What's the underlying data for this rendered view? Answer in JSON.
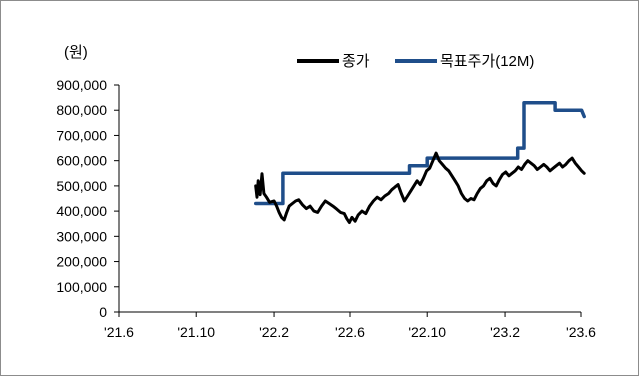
{
  "chart_data": {
    "type": "line",
    "ylabel": "(원)",
    "ylim": [
      0,
      900000
    ],
    "y_ticks": [
      "0",
      "100,000",
      "200,000",
      "300,000",
      "400,000",
      "500,000",
      "600,000",
      "700,000",
      "800,000",
      "900,000"
    ],
    "x_ticks": [
      "'21.6",
      "'21.10",
      "'22.2",
      "'22.6",
      "'22.10",
      "'23.2",
      "'23.6"
    ],
    "x_tick_dates": [
      "2021-06",
      "2021-10",
      "2022-02",
      "2022-06",
      "2022-10",
      "2023-02",
      "2023-06"
    ],
    "legend_position": "top-right",
    "series": [
      {
        "name": "종가",
        "color": "#000000",
        "points": [
          [
            "2022-01-03",
            500000
          ],
          [
            "2022-01-05",
            455000
          ],
          [
            "2022-01-07",
            520000
          ],
          [
            "2022-01-10",
            465000
          ],
          [
            "2022-01-13",
            548000
          ],
          [
            "2022-01-16",
            470000
          ],
          [
            "2022-01-20",
            455000
          ],
          [
            "2022-01-25",
            435000
          ],
          [
            "2022-02-01",
            440000
          ],
          [
            "2022-02-05",
            420000
          ],
          [
            "2022-02-09",
            395000
          ],
          [
            "2022-02-13",
            375000
          ],
          [
            "2022-02-17",
            365000
          ],
          [
            "2022-02-21",
            395000
          ],
          [
            "2022-02-25",
            420000
          ],
          [
            "2022-03-02",
            430000
          ],
          [
            "2022-03-07",
            440000
          ],
          [
            "2022-03-12",
            445000
          ],
          [
            "2022-03-18",
            425000
          ],
          [
            "2022-03-24",
            410000
          ],
          [
            "2022-03-30",
            420000
          ],
          [
            "2022-04-05",
            400000
          ],
          [
            "2022-04-11",
            395000
          ],
          [
            "2022-04-17",
            420000
          ],
          [
            "2022-04-23",
            440000
          ],
          [
            "2022-04-29",
            430000
          ],
          [
            "2022-05-05",
            420000
          ],
          [
            "2022-05-11",
            408000
          ],
          [
            "2022-05-17",
            395000
          ],
          [
            "2022-05-23",
            390000
          ],
          [
            "2022-05-27",
            370000
          ],
          [
            "2022-05-31",
            355000
          ],
          [
            "2022-06-04",
            375000
          ],
          [
            "2022-06-09",
            360000
          ],
          [
            "2022-06-14",
            385000
          ],
          [
            "2022-06-20",
            400000
          ],
          [
            "2022-06-26",
            390000
          ],
          [
            "2022-07-02",
            420000
          ],
          [
            "2022-07-08",
            440000
          ],
          [
            "2022-07-14",
            455000
          ],
          [
            "2022-07-20",
            445000
          ],
          [
            "2022-07-26",
            460000
          ],
          [
            "2022-08-01",
            470000
          ],
          [
            "2022-08-06",
            485000
          ],
          [
            "2022-08-11",
            495000
          ],
          [
            "2022-08-16",
            505000
          ],
          [
            "2022-08-21",
            470000
          ],
          [
            "2022-08-26",
            440000
          ],
          [
            "2022-08-31",
            460000
          ],
          [
            "2022-09-05",
            480000
          ],
          [
            "2022-09-10",
            500000
          ],
          [
            "2022-09-15",
            520000
          ],
          [
            "2022-09-20",
            505000
          ],
          [
            "2022-09-25",
            530000
          ],
          [
            "2022-09-30",
            560000
          ],
          [
            "2022-10-05",
            570000
          ],
          [
            "2022-10-10",
            600000
          ],
          [
            "2022-10-15",
            630000
          ],
          [
            "2022-10-20",
            600000
          ],
          [
            "2022-10-25",
            585000
          ],
          [
            "2022-10-30",
            570000
          ],
          [
            "2022-11-04",
            560000
          ],
          [
            "2022-11-09",
            540000
          ],
          [
            "2022-11-14",
            520000
          ],
          [
            "2022-11-19",
            500000
          ],
          [
            "2022-11-24",
            470000
          ],
          [
            "2022-11-29",
            450000
          ],
          [
            "2022-12-04",
            440000
          ],
          [
            "2022-12-09",
            450000
          ],
          [
            "2022-12-14",
            445000
          ],
          [
            "2022-12-19",
            470000
          ],
          [
            "2022-12-24",
            490000
          ],
          [
            "2022-12-29",
            500000
          ],
          [
            "2023-01-03",
            520000
          ],
          [
            "2023-01-08",
            530000
          ],
          [
            "2023-01-13",
            510000
          ],
          [
            "2023-01-18",
            500000
          ],
          [
            "2023-01-23",
            525000
          ],
          [
            "2023-01-28",
            545000
          ],
          [
            "2023-02-02",
            555000
          ],
          [
            "2023-02-07",
            540000
          ],
          [
            "2023-02-12",
            550000
          ],
          [
            "2023-02-17",
            560000
          ],
          [
            "2023-02-22",
            575000
          ],
          [
            "2023-02-27",
            565000
          ],
          [
            "2023-03-04",
            585000
          ],
          [
            "2023-03-09",
            600000
          ],
          [
            "2023-03-14",
            590000
          ],
          [
            "2023-03-19",
            580000
          ],
          [
            "2023-03-24",
            565000
          ],
          [
            "2023-03-29",
            575000
          ],
          [
            "2023-04-03",
            585000
          ],
          [
            "2023-04-08",
            575000
          ],
          [
            "2023-04-13",
            560000
          ],
          [
            "2023-04-18",
            570000
          ],
          [
            "2023-04-23",
            580000
          ],
          [
            "2023-04-28",
            590000
          ],
          [
            "2023-05-03",
            575000
          ],
          [
            "2023-05-08",
            585000
          ],
          [
            "2023-05-13",
            600000
          ],
          [
            "2023-05-18",
            610000
          ],
          [
            "2023-05-23",
            590000
          ],
          [
            "2023-05-28",
            575000
          ],
          [
            "2023-06-02",
            560000
          ],
          [
            "2023-06-06",
            550000
          ]
        ]
      },
      {
        "name": "목표주가(12M)",
        "color": "#1f4e8a",
        "points": [
          [
            "2022-01-03",
            430000
          ],
          [
            "2022-02-15",
            430000
          ],
          [
            "2022-02-15",
            550000
          ],
          [
            "2022-09-03",
            550000
          ],
          [
            "2022-09-03",
            580000
          ],
          [
            "2022-10-01",
            580000
          ],
          [
            "2022-10-01",
            610000
          ],
          [
            "2023-02-21",
            610000
          ],
          [
            "2023-02-21",
            650000
          ],
          [
            "2023-03-03",
            650000
          ],
          [
            "2023-03-03",
            830000
          ],
          [
            "2023-04-21",
            830000
          ],
          [
            "2023-04-21",
            800000
          ],
          [
            "2023-06-02",
            800000
          ],
          [
            "2023-06-06",
            775000
          ]
        ]
      }
    ]
  }
}
